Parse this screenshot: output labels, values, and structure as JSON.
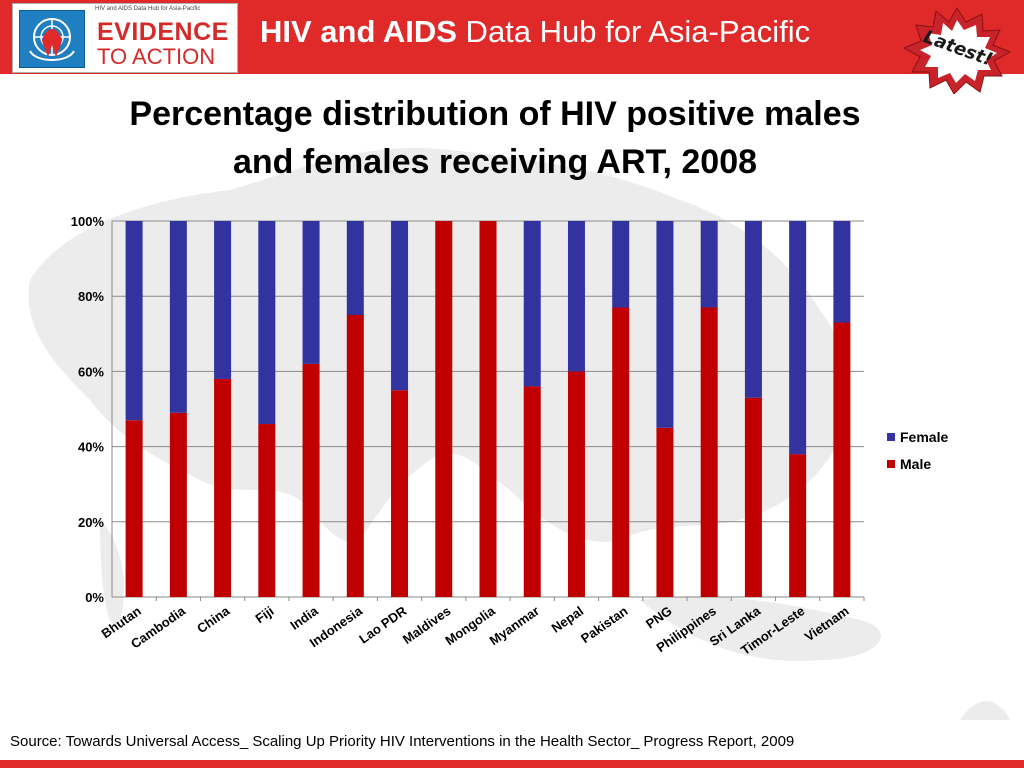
{
  "header": {
    "logo_small_text": "HIV and AIDS Data Hub for Asia-Pacific",
    "logo_line1": "EVIDENCE",
    "logo_line2": "TO ACTION",
    "title_bold": "HIV and AIDS",
    "title_rest": " Data Hub for Asia-Pacific",
    "badge": "Latest!",
    "bar_color": "#e02a2a"
  },
  "chart_data": {
    "type": "bar",
    "stacked": true,
    "title": "Percentage distribution of HIV positive males and females receiving ART, 2008",
    "title_line1": "Percentage distribution of HIV positive males",
    "title_line2": "and females receiving ART, 2008",
    "categories": [
      "Bhutan",
      "Cambodia",
      "China",
      "Fiji",
      "India",
      "Indonesia",
      "Lao PDR",
      "Maldives",
      "Mongolia",
      "Myanmar",
      "Nepal",
      "Pakistan",
      "PNG",
      "Philippines",
      "Sri Lanka",
      "Timor-Leste",
      "Vietnam"
    ],
    "series": [
      {
        "name": "Male",
        "color": "#c00000",
        "values": [
          47,
          49,
          58,
          46,
          62,
          75,
          55,
          100,
          100,
          56,
          60,
          77,
          45,
          77,
          53,
          38,
          73
        ]
      },
      {
        "name": "Female",
        "color": "#3333a0",
        "values": [
          53,
          51,
          42,
          54,
          38,
          25,
          45,
          0,
          0,
          44,
          40,
          23,
          55,
          23,
          47,
          62,
          27
        ]
      }
    ],
    "legend_order": [
      "Female",
      "Male"
    ],
    "y_ticks": [
      "0%",
      "20%",
      "40%",
      "60%",
      "80%",
      "100%"
    ],
    "ylim": [
      0,
      100
    ],
    "grid": true,
    "legend_position": "right"
  },
  "source": "Source: Towards Universal  Access_ Scaling Up Priority HIV Interventions in the Health Sector_ Progress Report, 2009"
}
